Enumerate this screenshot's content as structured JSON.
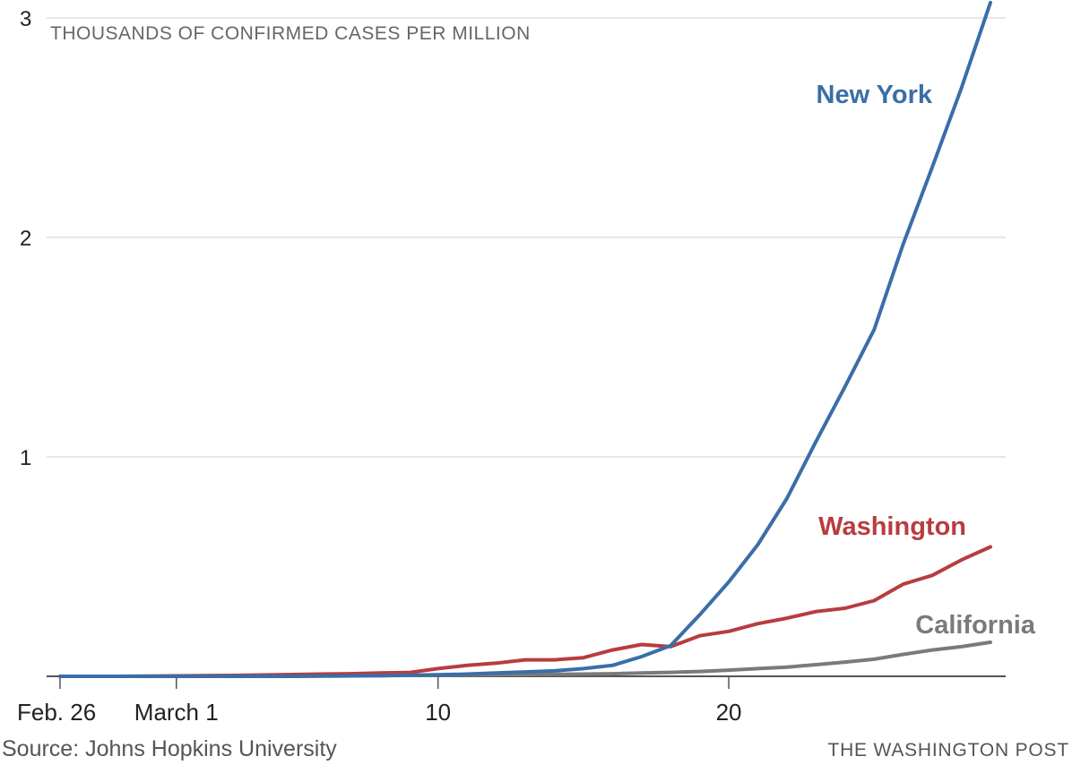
{
  "chart_data": {
    "type": "line",
    "ylabel": "THOUSANDS OF CONFIRMED CASES PER MILLION",
    "ylim": [
      0,
      3
    ],
    "yticks": [
      {
        "value": 1,
        "label": "1"
      },
      {
        "value": 2,
        "label": "2"
      },
      {
        "value": 3,
        "label": "3"
      }
    ],
    "xlim": [
      "2020-02-26",
      "2020-03-29"
    ],
    "xticks": [
      {
        "date": "2020-02-26",
        "label": "Feb. 26"
      },
      {
        "date": "2020-03-01",
        "label": "March 1"
      },
      {
        "date": "2020-03-10",
        "label": "10"
      },
      {
        "date": "2020-03-20",
        "label": "20"
      }
    ],
    "grid": true,
    "series": [
      {
        "name": "New York",
        "color": "#3a6ea8",
        "x": [
          "2020-02-26",
          "2020-02-27",
          "2020-02-28",
          "2020-02-29",
          "2020-03-01",
          "2020-03-02",
          "2020-03-03",
          "2020-03-04",
          "2020-03-05",
          "2020-03-06",
          "2020-03-07",
          "2020-03-08",
          "2020-03-09",
          "2020-03-10",
          "2020-03-11",
          "2020-03-12",
          "2020-03-13",
          "2020-03-14",
          "2020-03-15",
          "2020-03-16",
          "2020-03-17",
          "2020-03-18",
          "2020-03-19",
          "2020-03-20",
          "2020-03-21",
          "2020-03-22",
          "2020-03-23",
          "2020-03-24",
          "2020-03-25",
          "2020-03-26",
          "2020-03-27",
          "2020-03-28",
          "2020-03-29"
        ],
        "values": [
          0,
          0,
          0,
          0,
          0,
          0,
          0,
          0,
          0,
          0.001,
          0.002,
          0.003,
          0.005,
          0.007,
          0.01,
          0.015,
          0.02,
          0.025,
          0.035,
          0.05,
          0.09,
          0.14,
          0.28,
          0.43,
          0.6,
          0.81,
          1.07,
          1.32,
          1.58,
          1.97,
          2.32,
          2.68,
          3.07
        ]
      },
      {
        "name": "Washington",
        "color": "#b83c3f",
        "x": [
          "2020-02-26",
          "2020-02-27",
          "2020-02-28",
          "2020-02-29",
          "2020-03-01",
          "2020-03-02",
          "2020-03-03",
          "2020-03-04",
          "2020-03-05",
          "2020-03-06",
          "2020-03-07",
          "2020-03-08",
          "2020-03-09",
          "2020-03-10",
          "2020-03-11",
          "2020-03-12",
          "2020-03-13",
          "2020-03-14",
          "2020-03-15",
          "2020-03-16",
          "2020-03-17",
          "2020-03-18",
          "2020-03-19",
          "2020-03-20",
          "2020-03-21",
          "2020-03-22",
          "2020-03-23",
          "2020-03-24",
          "2020-03-25",
          "2020-03-26",
          "2020-03-27",
          "2020-03-28",
          "2020-03-29"
        ],
        "values": [
          0,
          0,
          0,
          0.001,
          0.002,
          0.003,
          0.004,
          0.006,
          0.008,
          0.01,
          0.012,
          0.015,
          0.017,
          0.035,
          0.05,
          0.06,
          0.075,
          0.075,
          0.085,
          0.12,
          0.145,
          0.135,
          0.185,
          0.205,
          0.24,
          0.265,
          0.295,
          0.31,
          0.345,
          0.42,
          0.46,
          0.53,
          0.59
        ]
      },
      {
        "name": "California",
        "color": "#7a7a7a",
        "x": [
          "2020-02-26",
          "2020-02-27",
          "2020-02-28",
          "2020-02-29",
          "2020-03-01",
          "2020-03-02",
          "2020-03-03",
          "2020-03-04",
          "2020-03-05",
          "2020-03-06",
          "2020-03-07",
          "2020-03-08",
          "2020-03-09",
          "2020-03-10",
          "2020-03-11",
          "2020-03-12",
          "2020-03-13",
          "2020-03-14",
          "2020-03-15",
          "2020-03-16",
          "2020-03-17",
          "2020-03-18",
          "2020-03-19",
          "2020-03-20",
          "2020-03-21",
          "2020-03-22",
          "2020-03-23",
          "2020-03-24",
          "2020-03-25",
          "2020-03-26",
          "2020-03-27",
          "2020-03-28",
          "2020-03-29"
        ],
        "values": [
          0,
          0,
          0,
          0,
          0,
          0,
          0.001,
          0.001,
          0.002,
          0.002,
          0.003,
          0.003,
          0.004,
          0.005,
          0.006,
          0.007,
          0.008,
          0.009,
          0.01,
          0.012,
          0.015,
          0.018,
          0.022,
          0.028,
          0.035,
          0.042,
          0.053,
          0.065,
          0.078,
          0.1,
          0.12,
          0.135,
          0.155
        ]
      }
    ]
  },
  "footer": {
    "source": "Source: Johns Hopkins University",
    "credit": "THE WASHINGTON POST"
  }
}
